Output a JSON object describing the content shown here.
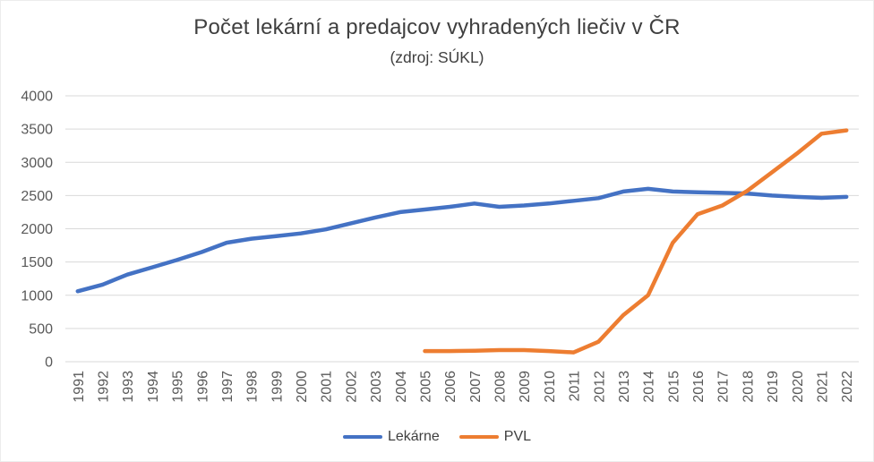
{
  "chart_data": {
    "type": "line",
    "title": "Počet lekární a predajcov vyhradených liečiv v ČR",
    "subtitle": "(zdroj: SÚKL)",
    "categories": [
      1991,
      1992,
      1993,
      1994,
      1995,
      1996,
      1997,
      1998,
      1999,
      2000,
      2001,
      2002,
      2003,
      2004,
      2005,
      2006,
      2007,
      2008,
      2009,
      2010,
      2011,
      2012,
      2013,
      2014,
      2015,
      2016,
      2017,
      2018,
      2019,
      2020,
      2021,
      2022
    ],
    "series": [
      {
        "name": "Lekárne",
        "color": "#4472C4",
        "values": [
          1060,
          1160,
          1310,
          1420,
          1530,
          1650,
          1790,
          1850,
          1890,
          1930,
          1990,
          2080,
          2170,
          2250,
          2290,
          2330,
          2380,
          2330,
          2350,
          2380,
          2420,
          2460,
          2560,
          2600,
          2560,
          2550,
          2540,
          2530,
          2500,
          2480,
          2465,
          2480
        ]
      },
      {
        "name": "PVL",
        "color": "#ED7D31",
        "values": [
          null,
          null,
          null,
          null,
          null,
          null,
          null,
          null,
          null,
          null,
          null,
          null,
          null,
          null,
          160,
          160,
          165,
          175,
          175,
          160,
          140,
          300,
          700,
          1000,
          1790,
          2220,
          2350,
          2570,
          2850,
          3130,
          3430,
          3480
        ]
      }
    ],
    "ylim": [
      0,
      4000
    ],
    "ytick_step": 500,
    "ytick_labels": [
      "0",
      "500",
      "1000",
      "1500",
      "2000",
      "2500",
      "3000",
      "3500",
      "4000"
    ],
    "grid": true,
    "gridline_color": "#D9D9D9",
    "axis_label_color": "#595959",
    "legend_position": "bottom"
  }
}
